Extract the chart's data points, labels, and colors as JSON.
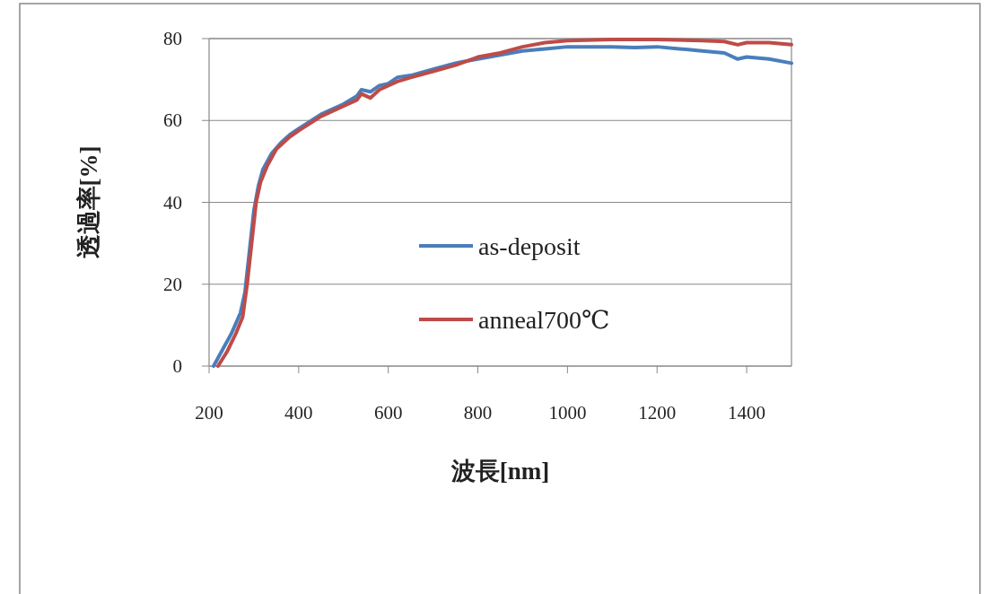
{
  "chart_data": {
    "type": "line",
    "xlabel": "波長[nm]",
    "ylabel": "透過率[%]",
    "xlim": [
      200,
      1500
    ],
    "xticks": [
      200,
      400,
      600,
      800,
      1000,
      1200,
      1400
    ],
    "ylim": [
      0,
      80
    ],
    "yticks": [
      0,
      20,
      40,
      60,
      80
    ],
    "grid": "y",
    "legend": "right",
    "marker": "none",
    "line_style": "solid",
    "series": [
      {
        "name": "as-deposit",
        "color": "#4a7ebb",
        "x": [
          210,
          230,
          250,
          270,
          280,
          290,
          300,
          310,
          320,
          340,
          360,
          380,
          400,
          450,
          500,
          530,
          540,
          560,
          580,
          600,
          620,
          650,
          700,
          750,
          800,
          850,
          900,
          950,
          1000,
          1050,
          1100,
          1150,
          1200,
          1250,
          1300,
          1350,
          1380,
          1400,
          1450,
          1500
        ],
        "values": [
          0,
          4,
          8,
          13,
          18,
          28,
          38,
          44,
          48,
          52,
          54.5,
          56.5,
          58,
          61.5,
          64,
          66,
          67.5,
          67,
          68.5,
          69,
          70.5,
          71,
          72.5,
          74,
          75,
          76,
          77,
          77.5,
          78,
          78,
          78,
          77.8,
          78,
          77.5,
          77,
          76.5,
          75,
          75.5,
          75,
          74
        ]
      },
      {
        "name": "anneal700℃",
        "color": "#be4b48",
        "x": [
          220,
          240,
          260,
          275,
          285,
          295,
          305,
          315,
          330,
          350,
          380,
          400,
          450,
          500,
          530,
          540,
          560,
          580,
          600,
          620,
          650,
          700,
          750,
          800,
          850,
          900,
          950,
          1000,
          1100,
          1200,
          1300,
          1350,
          1380,
          1400,
          1450,
          1500
        ],
        "values": [
          0,
          3.5,
          8,
          12,
          20,
          30,
          40,
          45,
          49,
          53,
          56,
          57.5,
          61,
          63.5,
          65,
          66.5,
          65.5,
          67.5,
          68.5,
          69.5,
          70.5,
          72,
          73.5,
          75.5,
          76.5,
          78,
          79,
          79.5,
          79.8,
          79.8,
          79.5,
          79.3,
          78.5,
          79,
          79,
          78.5
        ]
      }
    ]
  }
}
